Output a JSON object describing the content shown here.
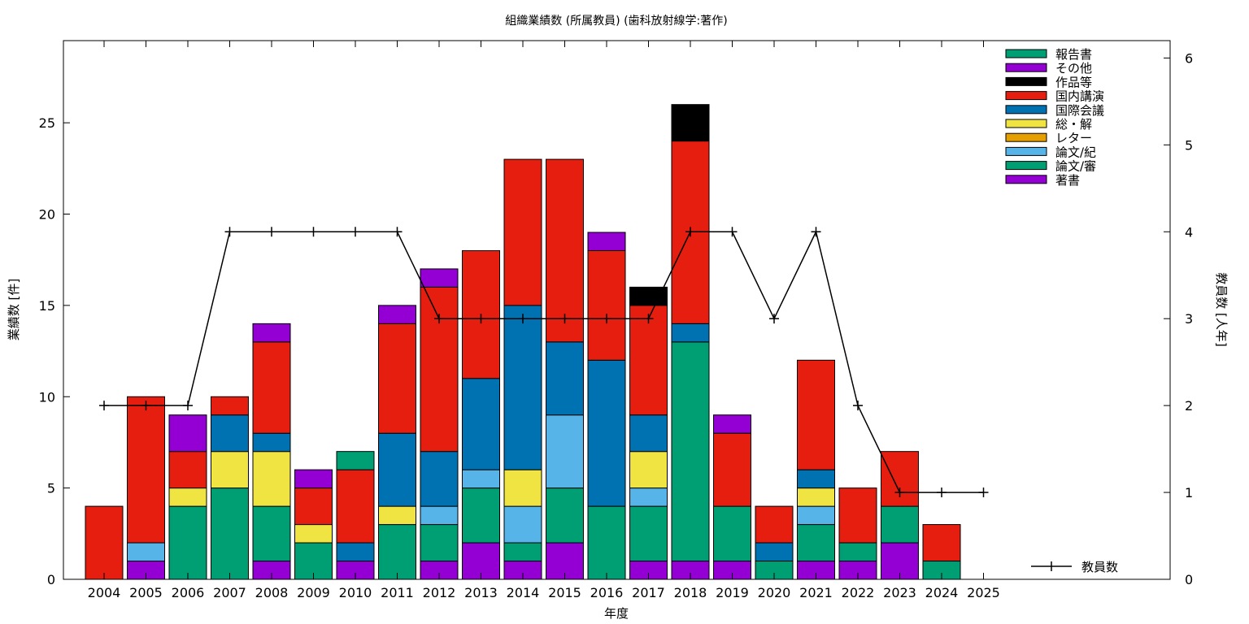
{
  "chart_data": {
    "type": "bar",
    "stacked": true,
    "title": "組織業績数 (所属教員) (歯科放射線学:著作)",
    "xlabel": "年度",
    "ylabel": "業績数 [件]",
    "y2label": "教員数 [人年]",
    "ylim": [
      0,
      29.5
    ],
    "y2lim": [
      0,
      6.2
    ],
    "yticks": [
      0,
      5,
      10,
      15,
      20,
      25
    ],
    "y2ticks": [
      0,
      1,
      2,
      3,
      4,
      5,
      6
    ],
    "categories": [
      "2004",
      "2005",
      "2006",
      "2007",
      "2008",
      "2009",
      "2010",
      "2011",
      "2012",
      "2013",
      "2014",
      "2015",
      "2016",
      "2017",
      "2018",
      "2019",
      "2020",
      "2021",
      "2022",
      "2023",
      "2024",
      "2025"
    ],
    "series": [
      {
        "name": "著書",
        "color": "#9400d3",
        "values": [
          0,
          1,
          0,
          0,
          1,
          0,
          1,
          0,
          1,
          2,
          1,
          2,
          0,
          1,
          1,
          1,
          0,
          1,
          1,
          2,
          0,
          0
        ]
      },
      {
        "name": "論文/審",
        "color": "#009e73",
        "values": [
          0,
          0,
          4,
          5,
          3,
          2,
          0,
          3,
          2,
          3,
          1,
          3,
          4,
          3,
          12,
          3,
          1,
          2,
          1,
          2,
          1,
          0
        ]
      },
      {
        "name": "論文/紀",
        "color": "#56b4e9",
        "values": [
          0,
          1,
          0,
          0,
          0,
          0,
          0,
          0,
          1,
          1,
          2,
          4,
          0,
          1,
          0,
          0,
          0,
          1,
          0,
          0,
          0,
          0
        ]
      },
      {
        "name": "レター",
        "color": "#e69f00",
        "values": [
          0,
          0,
          0,
          0,
          0,
          0,
          0,
          0,
          0,
          0,
          0,
          0,
          0,
          0,
          0,
          0,
          0,
          0,
          0,
          0,
          0,
          0
        ]
      },
      {
        "name": "総・解",
        "color": "#f0e442",
        "values": [
          0,
          0,
          1,
          2,
          3,
          1,
          0,
          1,
          0,
          0,
          2,
          0,
          0,
          2,
          0,
          0,
          0,
          1,
          0,
          0,
          0,
          0
        ]
      },
      {
        "name": "国際会議",
        "color": "#0072b2",
        "values": [
          0,
          0,
          0,
          2,
          1,
          0,
          1,
          4,
          3,
          5,
          9,
          4,
          8,
          2,
          1,
          0,
          1,
          1,
          0,
          0,
          0,
          0
        ]
      },
      {
        "name": "国内講演",
        "color": "#e51e10",
        "values": [
          4,
          8,
          2,
          1,
          5,
          2,
          4,
          6,
          9,
          7,
          8,
          10,
          6,
          6,
          10,
          4,
          2,
          6,
          3,
          3,
          2,
          0
        ]
      },
      {
        "name": "作品等",
        "color": "#000000",
        "values": [
          0,
          0,
          0,
          0,
          0,
          0,
          0,
          0,
          0,
          0,
          0,
          0,
          0,
          1,
          2,
          0,
          0,
          0,
          0,
          0,
          0,
          0
        ]
      },
      {
        "name": "その他",
        "color": "#9400d3",
        "values": [
          0,
          0,
          2,
          0,
          1,
          1,
          0,
          1,
          1,
          0,
          0,
          0,
          1,
          0,
          0,
          1,
          0,
          0,
          0,
          0,
          0,
          0
        ]
      },
      {
        "name": "報告書",
        "color": "#009e73",
        "values": [
          0,
          0,
          0,
          0,
          0,
          0,
          1,
          0,
          0,
          0,
          0,
          0,
          0,
          0,
          0,
          0,
          0,
          0,
          0,
          0,
          0,
          0
        ]
      }
    ],
    "line": {
      "name": "教員数",
      "color": "#000000",
      "values": [
        2,
        2,
        2,
        4,
        4,
        4,
        4,
        4,
        3,
        3,
        3,
        3,
        3,
        3,
        4,
        4,
        3,
        4,
        2,
        1,
        1,
        1
      ]
    },
    "legend": {
      "position": "top-right",
      "order": [
        "報告書",
        "その他",
        "作品等",
        "国内講演",
        "国際会議",
        "総・解",
        "レター",
        "論文/紀",
        "論文/審",
        "著書"
      ]
    },
    "line_legend": {
      "position": "bottom-right"
    },
    "grid": false
  }
}
